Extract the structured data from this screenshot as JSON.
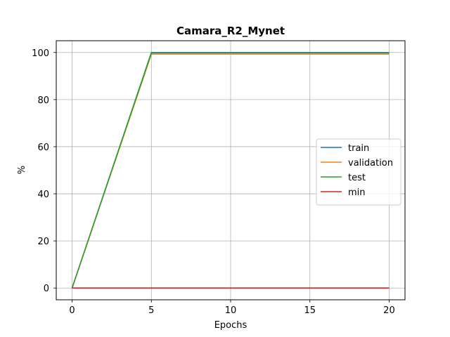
{
  "chart_data": {
    "type": "line",
    "title": "Camara_R2_Mynet",
    "xlabel": "Epochs",
    "ylabel": "%",
    "xlim": [
      -1,
      21
    ],
    "ylim": [
      -5,
      105
    ],
    "xticks": [
      0,
      5,
      10,
      15,
      20
    ],
    "yticks": [
      0,
      20,
      40,
      60,
      80,
      100
    ],
    "grid": true,
    "legend_position": "center-right",
    "x": [
      0,
      5,
      10,
      15,
      20
    ],
    "series": [
      {
        "name": "train",
        "color": "#1f77b4",
        "values": [
          0,
          100,
          100,
          100,
          100
        ]
      },
      {
        "name": "validation",
        "color": "#ff7f0e",
        "values": [
          0,
          99.3,
          99.3,
          99.3,
          99.3
        ]
      },
      {
        "name": "test",
        "color": "#2ca02c",
        "values": [
          0,
          99.8,
          99.8,
          99.8,
          99.8
        ]
      },
      {
        "name": "min",
        "color": "#d62728",
        "values": [
          0,
          0,
          0,
          0,
          0
        ]
      }
    ]
  }
}
